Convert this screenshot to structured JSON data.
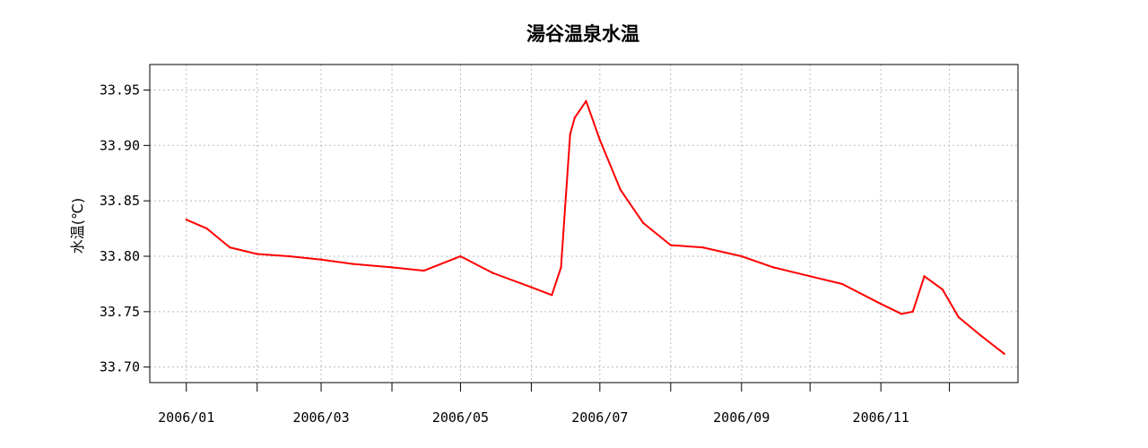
{
  "chart_data": {
    "type": "line",
    "title": "湯谷温泉水温",
    "xlabel": "",
    "ylabel": "水温(℃)",
    "xlim": [
      "2005-12-16",
      "2006-12-31"
    ],
    "ylim": [
      33.686,
      33.973
    ],
    "yticks": [
      33.7,
      33.75,
      33.8,
      33.85,
      33.9,
      33.95
    ],
    "ytick_labels": [
      "33.70",
      "33.75",
      "33.80",
      "33.85",
      "33.90",
      "33.95"
    ],
    "xticks": [
      "2006-01-01",
      "2006-02-01",
      "2006-03-01",
      "2006-04-01",
      "2006-05-01",
      "2006-06-01",
      "2006-07-01",
      "2006-08-01",
      "2006-09-01",
      "2006-10-01",
      "2006-11-01",
      "2006-12-01"
    ],
    "xtick_labels": [
      "2006/01",
      "",
      "2006/03",
      "",
      "2006/05",
      "",
      "2006/07",
      "",
      "2006/09",
      "",
      "2006/11",
      ""
    ],
    "grid": true,
    "color": "#ff0000",
    "series": [
      {
        "x": [
          "2006-01-01",
          "2006-01-10",
          "2006-01-20",
          "2006-02-01",
          "2006-02-15",
          "2006-03-01",
          "2006-03-15",
          "2006-04-01",
          "2006-04-15",
          "2006-05-01",
          "2006-05-15",
          "2006-06-01",
          "2006-06-10",
          "2006-06-14",
          "2006-06-18",
          "2006-06-20",
          "2006-06-25",
          "2006-07-01",
          "2006-07-10",
          "2006-07-20",
          "2006-08-01",
          "2006-08-15",
          "2006-09-01",
          "2006-09-15",
          "2006-10-01",
          "2006-10-15",
          "2006-11-01",
          "2006-11-10",
          "2006-11-15",
          "2006-11-20",
          "2006-11-28",
          "2006-12-05",
          "2006-12-15",
          "2006-12-25"
        ],
        "values": [
          33.833,
          33.825,
          33.808,
          33.802,
          33.8,
          33.797,
          33.793,
          33.79,
          33.787,
          33.8,
          33.785,
          33.772,
          33.765,
          33.79,
          33.91,
          33.925,
          33.94,
          33.905,
          33.86,
          33.83,
          33.81,
          33.808,
          33.8,
          33.79,
          33.782,
          33.775,
          33.757,
          33.748,
          33.75,
          33.782,
          33.77,
          33.745,
          33.728,
          33.712
        ]
      }
    ]
  }
}
